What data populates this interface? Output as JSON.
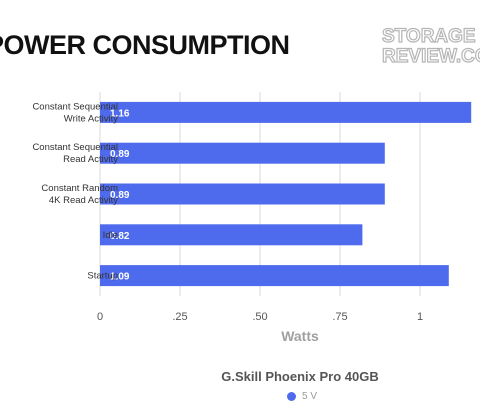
{
  "header": {
    "title": "POWER CONSUMPTION",
    "logo_line1": "STORAGE",
    "logo_line2": "REVIEW.COM"
  },
  "chart_data": {
    "type": "bar",
    "orientation": "horizontal",
    "title": "POWER CONSUMPTION",
    "subtitle": "G.Skill Phoenix Pro 40GB",
    "xlabel": "Watts",
    "categories": [
      [
        "Constant Sequential",
        "Write Activity"
      ],
      [
        "Constant Sequential",
        "Read Activity"
      ],
      [
        "Constant Random",
        "4K Read Activity"
      ],
      [
        "Idle"
      ],
      [
        "Startup"
      ]
    ],
    "series": [
      {
        "name": "5 V",
        "color": "#4f6bed",
        "values": [
          1.16,
          0.89,
          0.89,
          0.82,
          1.09
        ]
      }
    ],
    "value_labels": [
      "1.16",
      "0.89",
      "0.89",
      "0.82",
      "1.09"
    ],
    "xlim": [
      0,
      1.25
    ],
    "ticks": [
      0,
      0.25,
      0.5,
      0.75,
      1
    ],
    "tick_labels": [
      "0",
      ".25",
      ".50",
      ".75",
      "1"
    ],
    "grid": true,
    "legend_position": "bottom-center"
  }
}
